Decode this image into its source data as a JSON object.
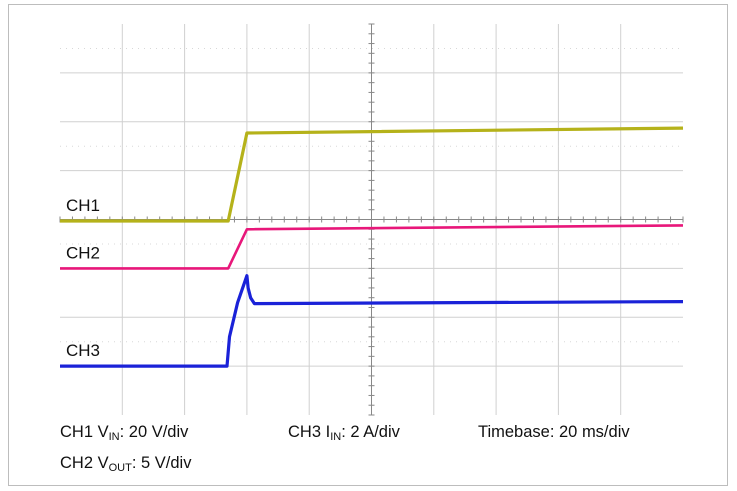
{
  "chart_data": {
    "type": "line",
    "grid": true,
    "x": {
      "divisions": 10,
      "unit": "div"
    },
    "y": {
      "divisions": 8,
      "unit": "div"
    },
    "colors": {
      "CH1": "#b5b21a",
      "CH2": "#e8177a",
      "CH3": "#1a22d8",
      "grid": "#d0d0d0",
      "axis": "#888888"
    },
    "series": [
      {
        "name": "CH1",
        "label": "CH1",
        "thickness": 3.2,
        "points": [
          [
            0,
            3.97
          ],
          [
            2.7,
            3.97
          ],
          [
            3.0,
            5.77
          ],
          [
            10,
            5.87
          ]
        ]
      },
      {
        "name": "CH2",
        "label": "CH2",
        "thickness": 2.6,
        "points": [
          [
            0,
            3.0
          ],
          [
            2.7,
            3.0
          ],
          [
            3.0,
            3.8
          ],
          [
            10,
            3.88
          ]
        ]
      },
      {
        "name": "CH3",
        "label": "CH3",
        "thickness": 3.2,
        "points": [
          [
            0,
            1.0
          ],
          [
            2.68,
            1.0
          ],
          [
            2.72,
            1.6
          ],
          [
            2.85,
            2.3
          ],
          [
            3.0,
            2.85
          ],
          [
            3.02,
            2.6
          ],
          [
            3.06,
            2.4
          ],
          [
            3.12,
            2.28
          ],
          [
            10,
            2.32
          ]
        ]
      }
    ]
  },
  "captions": {
    "ch1": {
      "name": "CH1 V",
      "sub": "IN",
      "rest": ": 20 V/div"
    },
    "ch3": {
      "name": "CH3 I",
      "sub": "IN",
      "rest": ": 2 A/div"
    },
    "timebase": "Timebase: 20 ms/div",
    "ch2": {
      "name": "CH2 V",
      "sub": "OUT",
      "rest": ": 5 V/div"
    }
  }
}
